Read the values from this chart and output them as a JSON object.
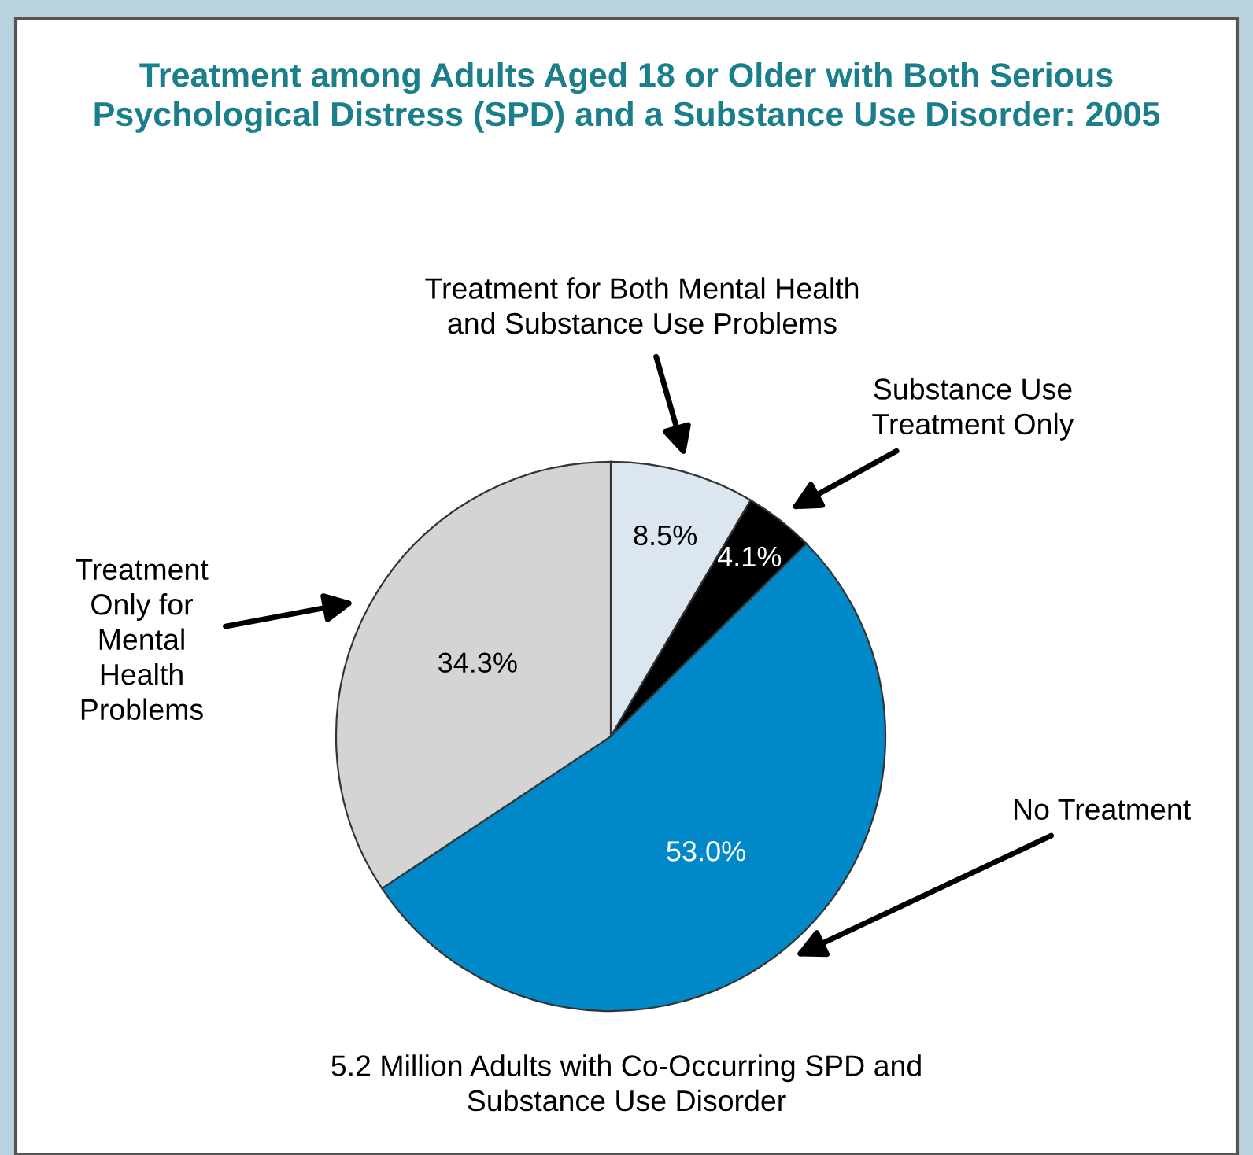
{
  "chart_data": {
    "type": "pie",
    "title": "Treatment among Adults Aged 18 or Older with Both Serious\nPsychological Distress (SPD) and a Substance Use Disorder: 2005",
    "categories": [
      "Treatment for Both Mental Health\nand Substance Use Problems",
      "Substance Use\nTreatment Only",
      "No Treatment",
      "Treatment\nOnly for\nMental\nHealth\nProblems"
    ],
    "values": [
      8.5,
      4.1,
      53.0,
      34.3
    ],
    "value_labels": [
      "8.5%",
      "4.1%",
      "53.0%",
      "34.3%"
    ],
    "colors": [
      "#dce6f0",
      "#000000",
      "#0088c8",
      "#d4d4d4"
    ],
    "annotations": [
      "5.2 Million Adults with Co-Occurring SPD and\nSubstance Use Disorder"
    ],
    "legend": false
  }
}
